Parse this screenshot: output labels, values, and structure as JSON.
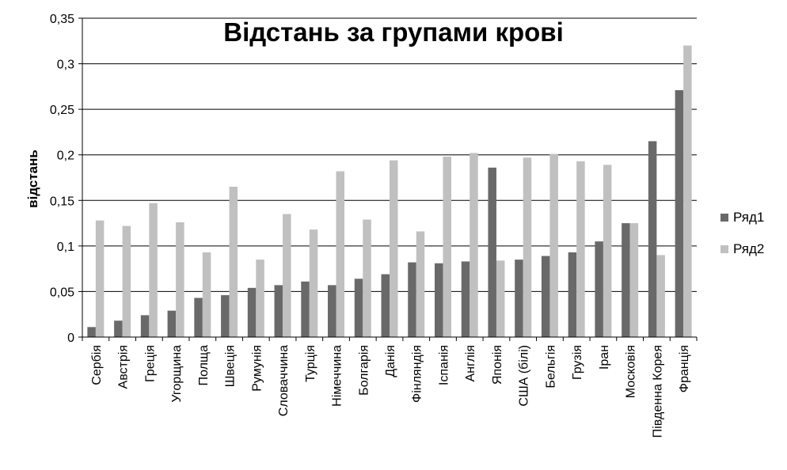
{
  "chart_data": {
    "type": "bar",
    "title": "Відстань за групами крові",
    "xlabel": "",
    "ylabel": "відстань",
    "ylim": [
      0,
      0.35
    ],
    "yticks": [
      "0",
      "0,05",
      "0,1",
      "0,15",
      "0,2",
      "0,25",
      "0,3",
      "0,35"
    ],
    "ytick_values": [
      0,
      0.05,
      0.1,
      0.15,
      0.2,
      0.25,
      0.3,
      0.35
    ],
    "grid": true,
    "legend_position": "right",
    "categories": [
      "Сербія",
      "Австрія",
      "Греція",
      "Угорщина",
      "Полща",
      "Швеція",
      "Румунія",
      "Словаччина",
      "Турція",
      "Німеччина",
      "Болгарія",
      "Данія",
      "Фінляндія",
      "Іспанія",
      "Англія",
      "Японія",
      "США (білі)",
      "Бельгія",
      "Грузія",
      "Іран",
      "Московія",
      "Південна Корея",
      "Франція"
    ],
    "series": [
      {
        "name": "Ряд1",
        "color": "#696969",
        "values": [
          0.011,
          0.018,
          0.024,
          0.029,
          0.043,
          0.046,
          0.054,
          0.057,
          0.061,
          0.057,
          0.064,
          0.069,
          0.082,
          0.081,
          0.083,
          0.186,
          0.085,
          0.089,
          0.093,
          0.105,
          0.125,
          0.215,
          0.271
        ]
      },
      {
        "name": "Ряд2",
        "color": "#c0c0c0",
        "values": [
          0.128,
          0.122,
          0.147,
          0.126,
          0.093,
          0.165,
          0.085,
          0.135,
          0.118,
          0.182,
          0.129,
          0.194,
          0.116,
          0.198,
          0.202,
          0.084,
          0.197,
          0.201,
          0.193,
          0.189,
          0.125,
          0.09,
          0.32
        ]
      }
    ]
  }
}
